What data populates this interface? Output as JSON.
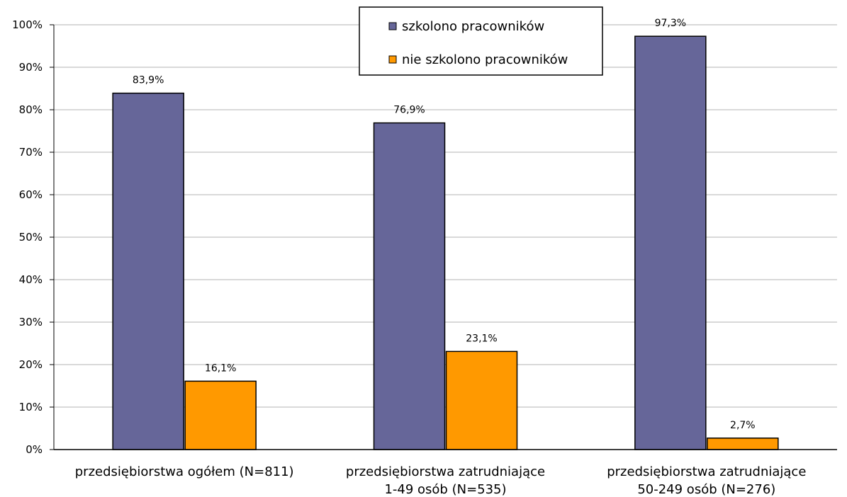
{
  "chart_data": {
    "type": "bar",
    "categories": [
      [
        "przedsiębiorstwa ogółem (N=811)"
      ],
      [
        "przedsiębiorstwa zatrudniające",
        "1-49 osób (N=535)"
      ],
      [
        "przedsiębiorstwa zatrudniające",
        "50-249 osób (N=276)"
      ]
    ],
    "series": [
      {
        "name": "szkolono pracowników",
        "values": [
          83.9,
          76.9,
          97.3
        ],
        "labels": [
          "83,9%",
          "76,9%",
          "97,3%"
        ],
        "color": "#666699"
      },
      {
        "name": "nie szkolono pracowników",
        "values": [
          16.1,
          23.1,
          2.7
        ],
        "labels": [
          "16,1%",
          "23,1%",
          "2,7%"
        ],
        "color": "#FF9900"
      }
    ],
    "yticks": [
      "0%",
      "10%",
      "20%",
      "30%",
      "40%",
      "50%",
      "60%",
      "70%",
      "80%",
      "90%",
      "100%"
    ],
    "ylim": [
      0,
      100
    ],
    "grid": true,
    "legend": "top-center"
  }
}
